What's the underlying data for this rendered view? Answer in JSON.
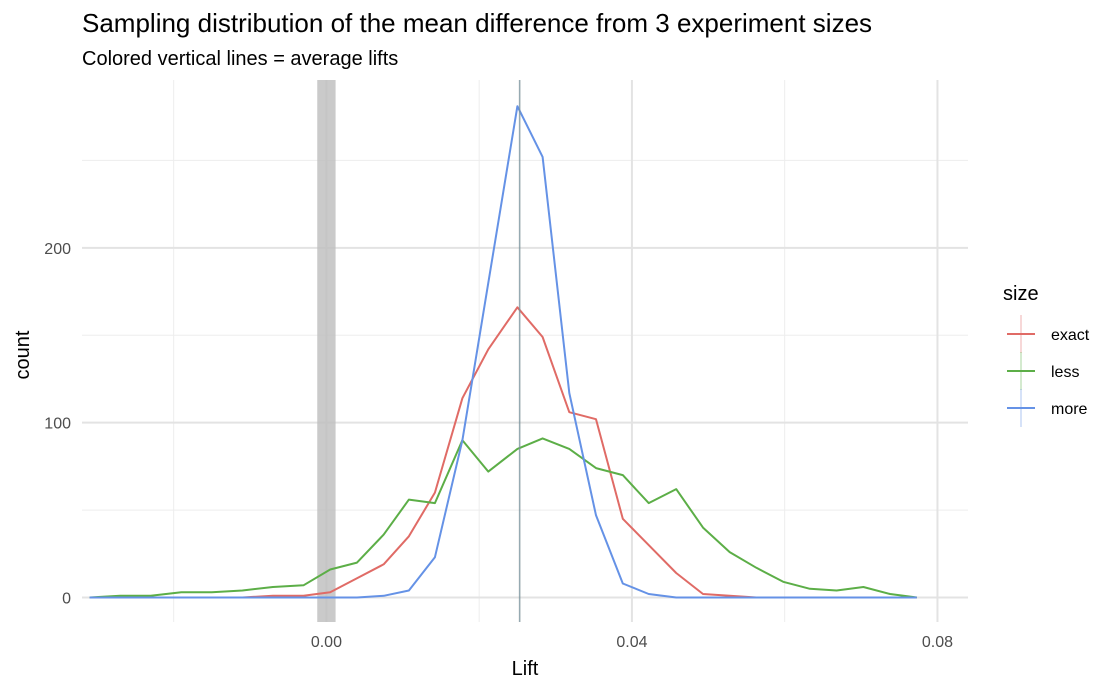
{
  "chart_data": {
    "type": "line",
    "title": "Sampling distribution of the mean difference from 3 experiment sizes",
    "subtitle": "Colored vertical lines = average lifts",
    "xlabel": "Lift",
    "ylabel": "count",
    "xlim": [
      -0.032,
      0.084
    ],
    "ylim": [
      -14,
      296
    ],
    "x_ticks": [
      0.0,
      0.04,
      0.08
    ],
    "x_tick_labels": [
      "0.00",
      "0.04",
      "0.08"
    ],
    "y_ticks": [
      0,
      100,
      200
    ],
    "y_tick_labels": [
      "0",
      "100",
      "200"
    ],
    "grid": true,
    "legend": {
      "title": "size",
      "position": "right"
    },
    "reference_band": {
      "x0": -0.0012,
      "x1": 0.0012,
      "color": "#bdbdbd"
    },
    "average_lifts": [
      {
        "series": "exact",
        "x": 0.0253
      },
      {
        "series": "less",
        "x": 0.0253
      },
      {
        "series": "more",
        "x": 0.0253
      }
    ],
    "x": [
      -0.031,
      -0.027,
      -0.023,
      -0.019,
      -0.015,
      -0.011,
      -0.007,
      -0.003,
      0.0005,
      0.004,
      0.0075,
      0.0108,
      0.0142,
      0.0178,
      0.0212,
      0.025,
      0.0283,
      0.0318,
      0.0353,
      0.0388,
      0.0422,
      0.0458,
      0.0493,
      0.0528,
      0.0563,
      0.0598,
      0.0633,
      0.0668,
      0.0703,
      0.0738,
      0.0773
    ],
    "series": [
      {
        "name": "exact",
        "color": "#e06b66",
        "values": [
          0,
          0,
          0,
          0,
          0,
          0,
          1,
          1,
          3,
          11,
          19,
          35,
          60,
          114,
          142,
          166,
          149,
          106,
          102,
          45,
          30,
          14,
          2,
          1,
          0,
          0,
          0,
          0,
          0,
          0,
          0
        ]
      },
      {
        "name": "less",
        "color": "#5cae47",
        "values": [
          0,
          1,
          1,
          3,
          3,
          4,
          6,
          7,
          16,
          20,
          36,
          56,
          54,
          90,
          72,
          85,
          91,
          85,
          74,
          70,
          54,
          62,
          40,
          26,
          17,
          9,
          5,
          4,
          6,
          2,
          0
        ]
      },
      {
        "name": "more",
        "color": "#6592e6",
        "values": [
          0,
          0,
          0,
          0,
          0,
          0,
          0,
          0,
          0,
          0,
          1,
          4,
          23,
          90,
          180,
          281,
          252,
          117,
          47,
          8,
          2,
          0,
          0,
          0,
          0,
          0,
          0,
          0,
          0,
          0,
          0
        ]
      }
    ]
  }
}
